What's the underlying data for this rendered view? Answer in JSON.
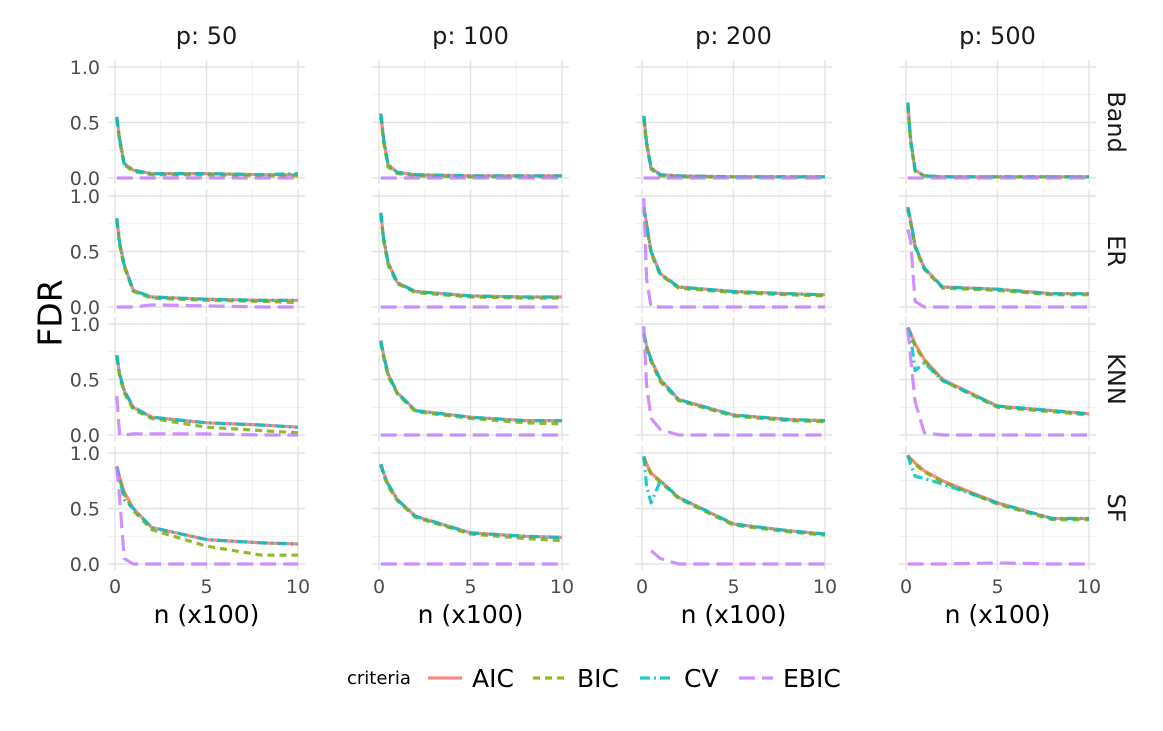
{
  "chart_data": {
    "type": "line",
    "xlabel": "n (x100)",
    "ylabel": "FDR",
    "xlim": [
      0,
      10
    ],
    "ylim": [
      0,
      1
    ],
    "x_ticks": [
      "0",
      "5",
      "10"
    ],
    "y_ticks": [
      "0.0",
      "0.5",
      "1.0"
    ],
    "columns": [
      "p: 50",
      "p: 100",
      "p: 200",
      "p: 500"
    ],
    "rows": [
      "Band",
      "ER",
      "KNN",
      "SF"
    ],
    "legend": {
      "title": "criteria",
      "entries": [
        {
          "name": "AIC",
          "color": "#F8766D",
          "dash": "solid"
        },
        {
          "name": "BIC",
          "color": "#7CAE00",
          "dash": "dashed"
        },
        {
          "name": "CV",
          "color": "#00BFC4",
          "dash": "dashdot"
        },
        {
          "name": "EBIC",
          "color": "#C77CFF",
          "dash": "longdash"
        }
      ]
    },
    "x": [
      0.1,
      0.25,
      0.5,
      1,
      2,
      5,
      8,
      10
    ],
    "panels": [
      [
        {
          "AIC": [
            0.55,
            0.35,
            0.13,
            0.07,
            0.04,
            0.04,
            0.03,
            0.03
          ],
          "BIC": [
            0.53,
            0.33,
            0.12,
            0.06,
            0.03,
            0.03,
            0.02,
            0.02
          ],
          "CV": [
            0.55,
            0.35,
            0.13,
            0.07,
            0.04,
            0.04,
            0.03,
            0.04
          ],
          "EBIC": [
            0.0,
            0.0,
            0.0,
            0.0,
            0.0,
            0.0,
            0.0,
            0.0
          ]
        },
        {
          "AIC": [
            0.58,
            0.35,
            0.12,
            0.05,
            0.03,
            0.02,
            0.02,
            0.02
          ],
          "BIC": [
            0.55,
            0.32,
            0.1,
            0.04,
            0.02,
            0.01,
            0.01,
            0.01
          ],
          "CV": [
            0.58,
            0.35,
            0.12,
            0.05,
            0.03,
            0.02,
            0.02,
            0.02
          ],
          "EBIC": [
            0.0,
            0.0,
            0.0,
            0.0,
            0.0,
            0.0,
            0.0,
            0.0
          ]
        },
        {
          "AIC": [
            0.56,
            0.32,
            0.09,
            0.03,
            0.02,
            0.01,
            0.01,
            0.01
          ],
          "BIC": [
            0.53,
            0.3,
            0.08,
            0.02,
            0.01,
            0.01,
            0.01,
            0.01
          ],
          "CV": [
            0.56,
            0.32,
            0.09,
            0.03,
            0.02,
            0.01,
            0.01,
            0.01
          ],
          "EBIC": [
            0.0,
            0.0,
            0.0,
            0.0,
            0.0,
            0.0,
            0.0,
            0.0
          ]
        },
        {
          "AIC": [
            0.68,
            0.35,
            0.07,
            0.02,
            0.01,
            0.01,
            0.01,
            0.01
          ],
          "BIC": [
            0.65,
            0.32,
            0.06,
            0.02,
            0.01,
            0.01,
            0.01,
            0.01
          ],
          "CV": [
            0.68,
            0.35,
            0.07,
            0.02,
            0.01,
            0.01,
            0.01,
            0.01
          ],
          "EBIC": [
            0.0,
            0.0,
            0.0,
            0.0,
            0.0,
            0.0,
            0.0,
            0.0
          ]
        }
      ],
      [
        {
          "AIC": [
            0.8,
            0.58,
            0.38,
            0.15,
            0.09,
            0.07,
            0.06,
            0.06
          ],
          "BIC": [
            0.78,
            0.56,
            0.36,
            0.14,
            0.08,
            0.06,
            0.05,
            0.04
          ],
          "CV": [
            0.8,
            0.58,
            0.38,
            0.15,
            0.09,
            0.07,
            0.06,
            0.06
          ],
          "EBIC": [
            0.0,
            0.0,
            0.0,
            0.0,
            0.02,
            0.01,
            0.0,
            0.0
          ]
        },
        {
          "AIC": [
            0.85,
            0.62,
            0.4,
            0.22,
            0.14,
            0.1,
            0.09,
            0.09
          ],
          "BIC": [
            0.83,
            0.6,
            0.38,
            0.21,
            0.13,
            0.09,
            0.08,
            0.08
          ],
          "CV": [
            0.85,
            0.62,
            0.4,
            0.22,
            0.14,
            0.1,
            0.09,
            0.09
          ],
          "EBIC": [
            0.0,
            0.0,
            0.0,
            0.0,
            0.0,
            0.0,
            0.0,
            0.0
          ]
        },
        {
          "AIC": [
            0.9,
            0.75,
            0.5,
            0.3,
            0.18,
            0.14,
            0.12,
            0.11
          ],
          "BIC": [
            0.88,
            0.73,
            0.48,
            0.29,
            0.17,
            0.13,
            0.11,
            0.1
          ],
          "CV": [
            0.9,
            0.75,
            0.5,
            0.3,
            0.18,
            0.14,
            0.12,
            0.11
          ],
          "EBIC": [
            0.98,
            0.25,
            0.0,
            0.0,
            0.0,
            0.0,
            0.0,
            0.0
          ]
        },
        {
          "AIC": [
            0.9,
            0.78,
            0.55,
            0.35,
            0.18,
            0.16,
            0.12,
            0.12
          ],
          "BIC": [
            0.88,
            0.76,
            0.54,
            0.34,
            0.17,
            0.15,
            0.11,
            0.11
          ],
          "CV": [
            0.9,
            0.78,
            0.55,
            0.35,
            0.18,
            0.16,
            0.12,
            0.12
          ],
          "EBIC": [
            0.7,
            0.6,
            0.05,
            0.0,
            0.0,
            0.0,
            0.0,
            0.0
          ]
        }
      ],
      [
        {
          "AIC": [
            0.72,
            0.55,
            0.4,
            0.25,
            0.16,
            0.11,
            0.09,
            0.07
          ],
          "BIC": [
            0.7,
            0.53,
            0.38,
            0.23,
            0.15,
            0.07,
            0.04,
            0.02
          ],
          "CV": [
            0.72,
            0.55,
            0.4,
            0.25,
            0.16,
            0.11,
            0.09,
            0.07
          ],
          "EBIC": [
            0.35,
            0.0,
            0.0,
            0.01,
            0.01,
            0.01,
            0.0,
            0.0
          ]
        },
        {
          "AIC": [
            0.85,
            0.72,
            0.55,
            0.38,
            0.22,
            0.16,
            0.13,
            0.13
          ],
          "BIC": [
            0.83,
            0.7,
            0.53,
            0.37,
            0.21,
            0.15,
            0.11,
            0.1
          ],
          "CV": [
            0.85,
            0.72,
            0.55,
            0.38,
            0.22,
            0.16,
            0.13,
            0.13
          ],
          "EBIC": [
            0.0,
            0.0,
            0.0,
            0.0,
            0.0,
            0.0,
            0.0,
            0.0
          ]
        },
        {
          "AIC": [
            0.92,
            0.8,
            0.68,
            0.5,
            0.32,
            0.18,
            0.14,
            0.13
          ],
          "BIC": [
            0.9,
            0.78,
            0.66,
            0.48,
            0.31,
            0.17,
            0.13,
            0.12
          ],
          "CV": [
            0.92,
            0.8,
            0.68,
            0.5,
            0.32,
            0.18,
            0.14,
            0.13
          ],
          "EBIC": [
            0.98,
            0.45,
            0.15,
            0.05,
            0.0,
            0.0,
            0.0,
            0.0
          ]
        },
        {
          "AIC": [
            0.97,
            0.92,
            0.82,
            0.68,
            0.5,
            0.26,
            0.22,
            0.19
          ],
          "BIC": [
            0.96,
            0.91,
            0.8,
            0.67,
            0.49,
            0.25,
            0.21,
            0.18
          ],
          "CV": [
            0.97,
            0.9,
            0.58,
            0.65,
            0.49,
            0.26,
            0.22,
            0.19
          ],
          "EBIC": [
            0.96,
            0.7,
            0.3,
            0.02,
            0.0,
            0.0,
            0.0,
            0.0
          ]
        }
      ],
      [
        {
          "AIC": [
            0.88,
            0.78,
            0.65,
            0.5,
            0.33,
            0.22,
            0.19,
            0.18
          ],
          "BIC": [
            0.87,
            0.76,
            0.63,
            0.48,
            0.31,
            0.16,
            0.08,
            0.08
          ],
          "CV": [
            0.88,
            0.78,
            0.58,
            0.5,
            0.33,
            0.22,
            0.19,
            0.18
          ],
          "EBIC": [
            0.88,
            0.6,
            0.05,
            0.0,
            0.0,
            0.0,
            0.0,
            0.0
          ]
        },
        {
          "AIC": [
            0.9,
            0.82,
            0.72,
            0.58,
            0.43,
            0.28,
            0.25,
            0.24
          ],
          "BIC": [
            0.89,
            0.8,
            0.7,
            0.57,
            0.42,
            0.27,
            0.23,
            0.21
          ],
          "CV": [
            0.9,
            0.82,
            0.72,
            0.58,
            0.43,
            0.28,
            0.25,
            0.24
          ],
          "EBIC": [
            0.0,
            0.0,
            0.0,
            0.0,
            0.0,
            0.0,
            0.0,
            0.0
          ]
        },
        {
          "AIC": [
            0.97,
            0.9,
            0.82,
            0.75,
            0.6,
            0.36,
            0.3,
            0.27
          ],
          "BIC": [
            0.96,
            0.89,
            0.81,
            0.74,
            0.59,
            0.35,
            0.29,
            0.26
          ],
          "CV": [
            0.97,
            0.7,
            0.55,
            0.75,
            0.6,
            0.36,
            0.3,
            0.27
          ],
          "EBIC": [
            null,
            null,
            0.12,
            0.05,
            0.0,
            0.0,
            0.0,
            0.0
          ]
        },
        {
          "AIC": [
            0.98,
            0.95,
            0.91,
            0.84,
            0.75,
            0.55,
            0.41,
            0.41
          ],
          "BIC": [
            0.97,
            0.94,
            0.9,
            0.83,
            0.74,
            0.54,
            0.4,
            0.4
          ],
          "CV": [
            0.98,
            0.9,
            0.79,
            0.77,
            0.72,
            0.55,
            0.41,
            0.41
          ],
          "EBIC": [
            0.0,
            0.0,
            0.0,
            0.0,
            0.0,
            0.01,
            0.0,
            0.0
          ]
        }
      ]
    ]
  }
}
